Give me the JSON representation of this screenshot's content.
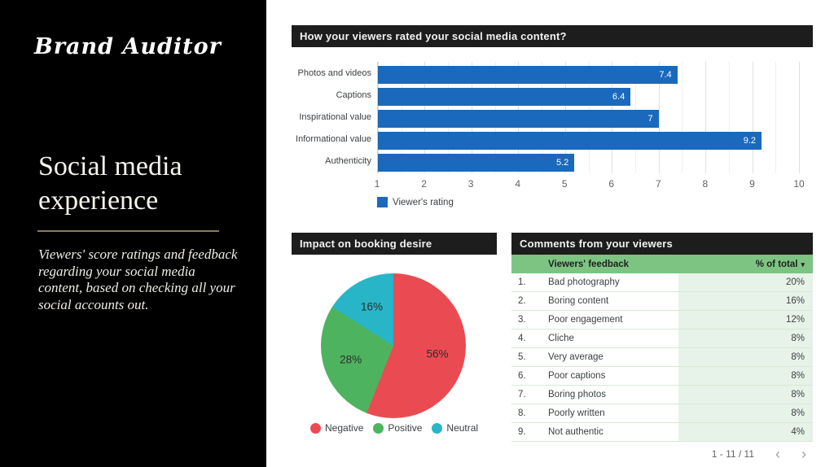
{
  "sidebar": {
    "logo": "Brand Auditor",
    "title": "Social media experience",
    "description": "Viewers' score ratings and feedback regarding your social media content, based on checking all your social accounts out."
  },
  "icons": {
    "sort_arrow": "▾",
    "prev": "‹",
    "next": "›"
  },
  "chart_data": [
    {
      "type": "bar",
      "title": "How your viewers rated your social media content?",
      "orientation": "horizontal",
      "categories": [
        "Photos and videos",
        "Captions",
        "Inspirational value",
        "Informational value",
        "Authenticity"
      ],
      "values": [
        7.4,
        6.4,
        7,
        9.2,
        5.2
      ],
      "value_labels": [
        "7.4",
        "6.4",
        "7",
        "9.2",
        "5.2"
      ],
      "xlim": [
        1,
        10
      ],
      "xticks": [
        1,
        2,
        3,
        4,
        5,
        6,
        7,
        8,
        9,
        10
      ],
      "grid": "vertical, minor lines every 0.5",
      "bar_color": "#1a69bc",
      "legend": [
        {
          "name": "Viewer's rating",
          "color": "#1a69bc"
        }
      ],
      "legend_position": "bottom-left"
    },
    {
      "type": "pie",
      "title": "Impact on booking desire",
      "labels": [
        "Negative",
        "Positive",
        "Neutral"
      ],
      "values": [
        56,
        28,
        16
      ],
      "value_labels": [
        "56%",
        "28%",
        "16%"
      ],
      "colors": [
        "#ea4b52",
        "#4db35f",
        "#28b5c8"
      ],
      "start_angle": 0,
      "direction": "clockwise",
      "legend_position": "bottom"
    },
    {
      "type": "table",
      "title": "Comments from your viewers",
      "columns": [
        "",
        "Viewers' feedback",
        "% of total"
      ],
      "header_color": "#7dc483",
      "value_column_color": "#e7f2e8",
      "rows": [
        [
          "1.",
          "Bad photography",
          "20%"
        ],
        [
          "2.",
          "Boring content",
          "16%"
        ],
        [
          "3.",
          "Poor engagement",
          "12%"
        ],
        [
          "4.",
          "Cliche",
          "8%"
        ],
        [
          "5.",
          "Very average",
          "8%"
        ],
        [
          "6.",
          "Poor captions",
          "8%"
        ],
        [
          "7.",
          "Boring photos",
          "8%"
        ],
        [
          "8.",
          "Poorly written",
          "8%"
        ],
        [
          "9.",
          "Not authentic",
          "4%"
        ]
      ],
      "pagination": "1 - 11 / 11"
    }
  ]
}
